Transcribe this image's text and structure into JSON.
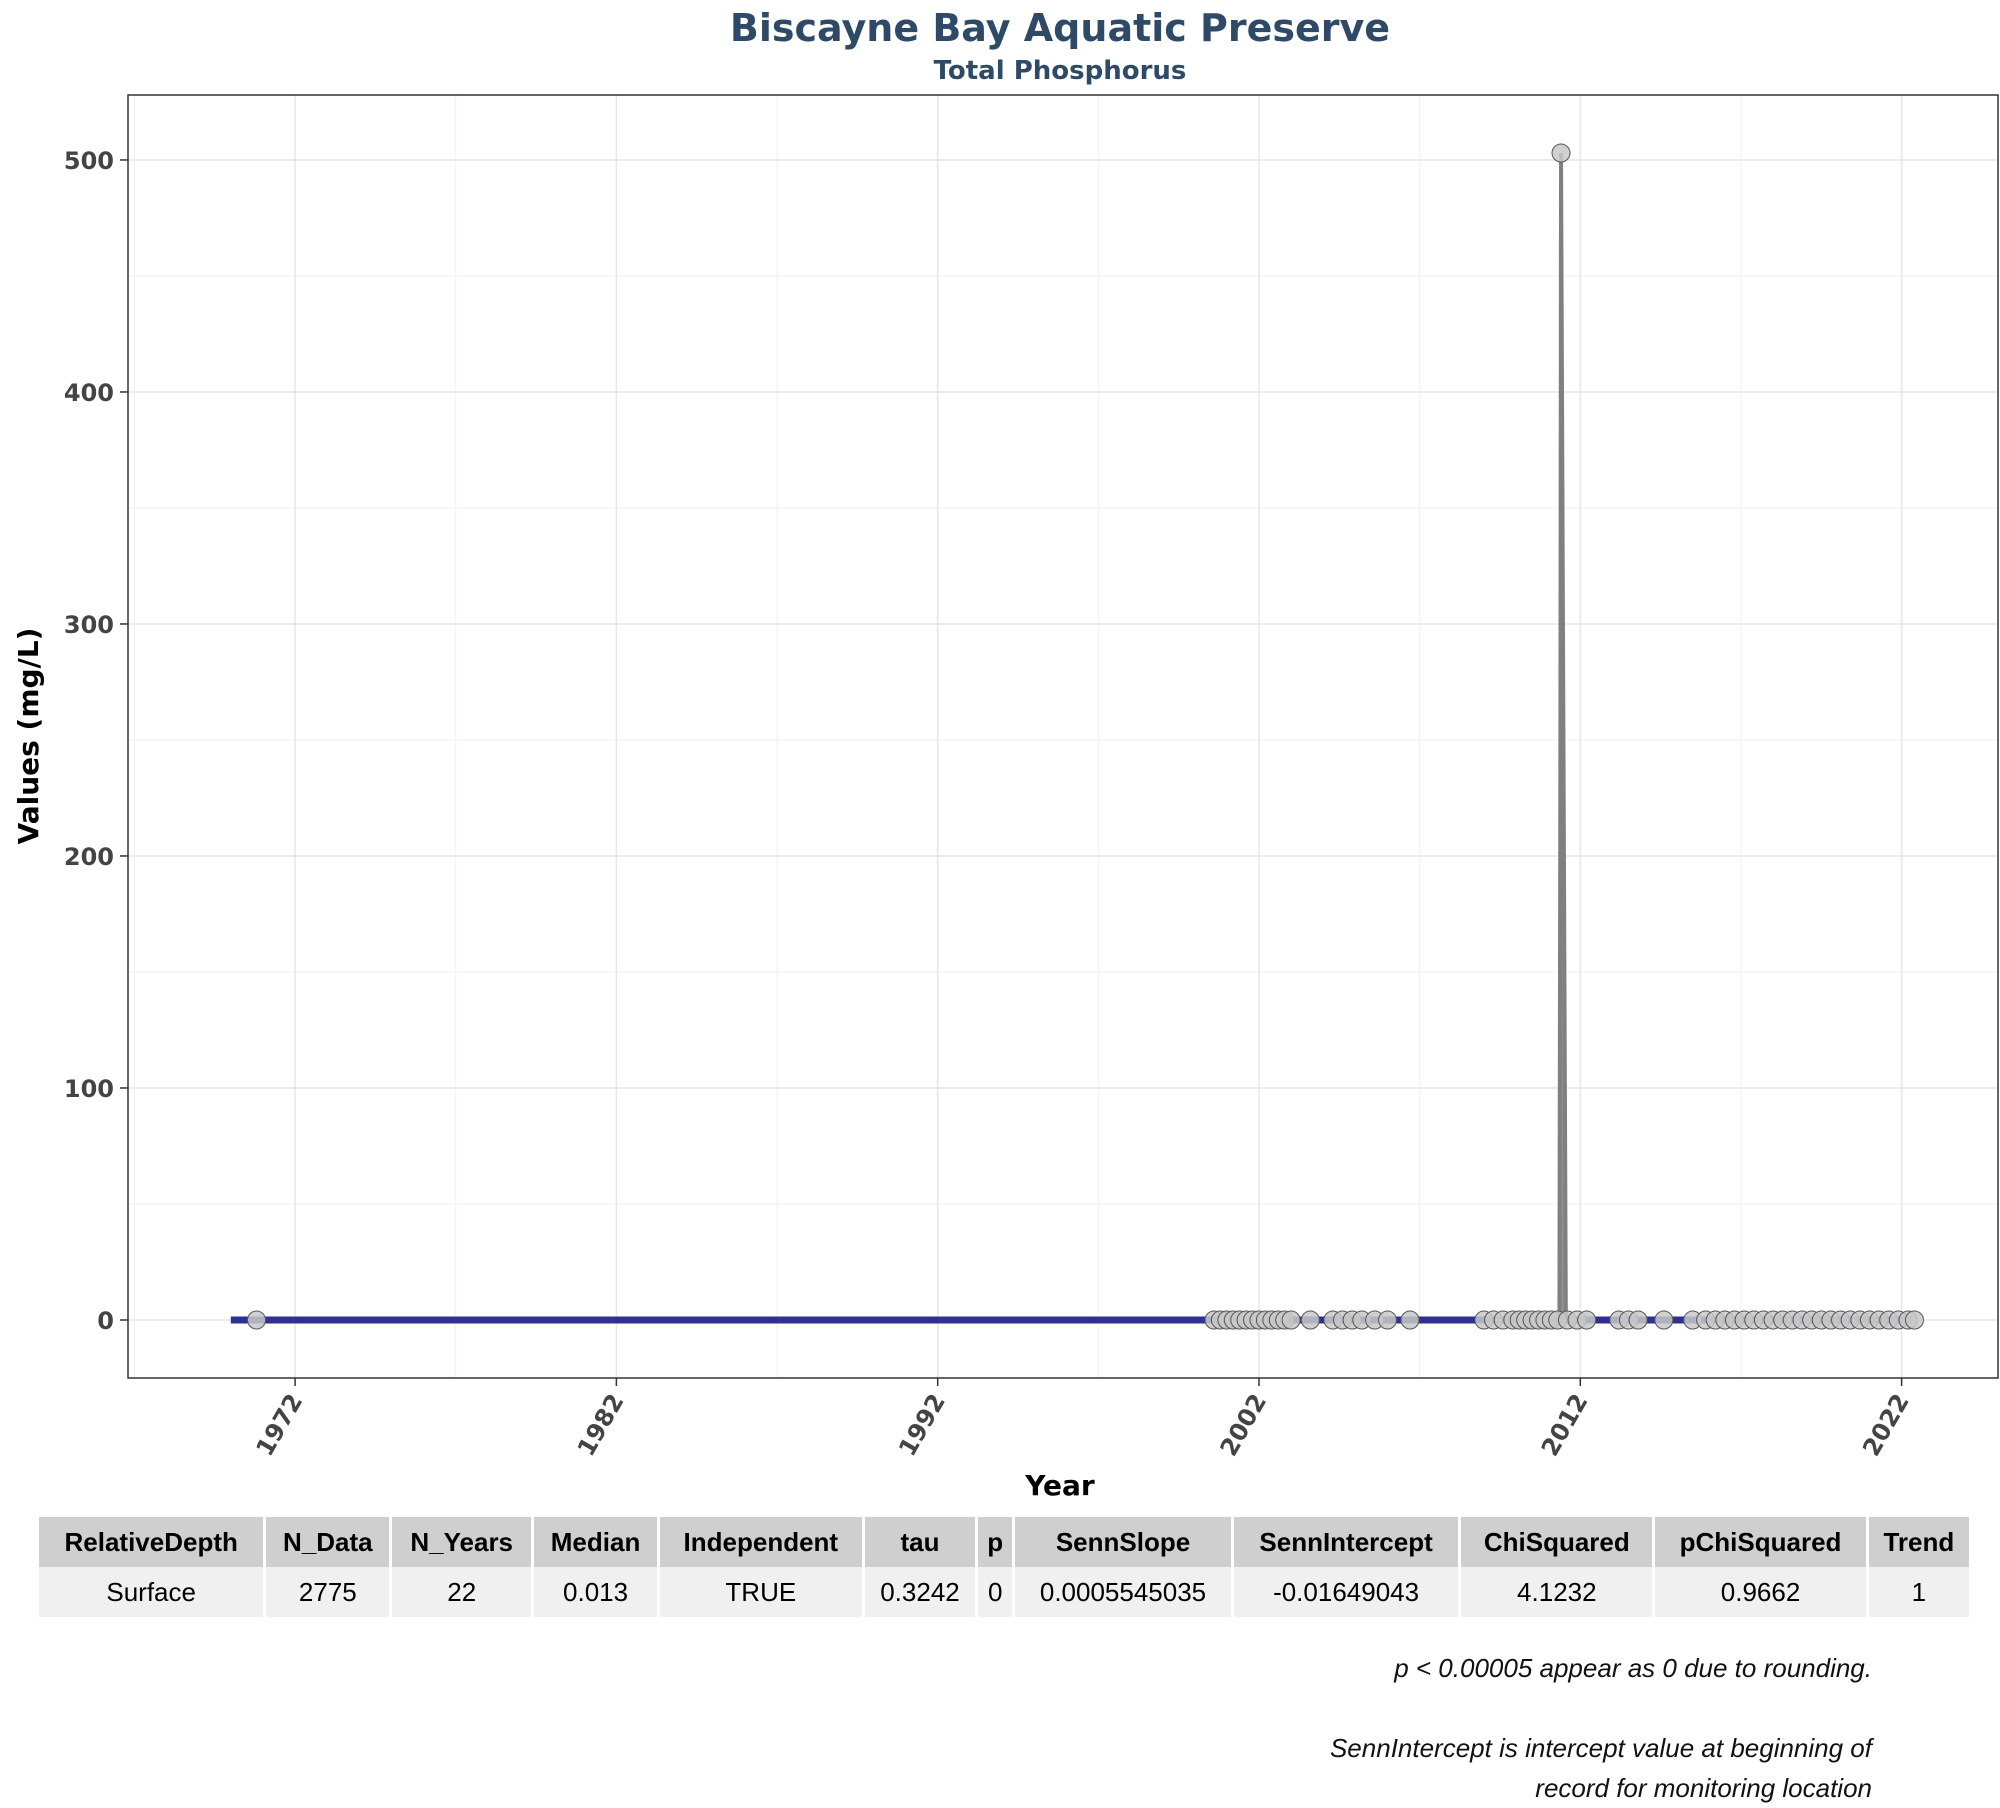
{
  "chart_data": {
    "type": "scatter",
    "title": "Biscayne Bay Aquatic Preserve",
    "subtitle": "Total Phosphorus",
    "xlabel": "Year",
    "ylabel": "Values (mg/L)",
    "xlim": [
      1966.8,
      2025.0
    ],
    "ylim": [
      -25,
      528
    ],
    "x_ticks": [
      1972,
      1982,
      1992,
      2002,
      2012,
      2022
    ],
    "y_ticks": [
      0,
      100,
      200,
      300,
      400,
      500
    ],
    "grid": true,
    "point_color": "#c8c8c8",
    "line_color": "#808080",
    "trend_color": "#2e3192",
    "points": [
      {
        "x": 1970.8,
        "y": 0
      },
      {
        "x": 2000.6,
        "y": 0
      },
      {
        "x": 2000.8,
        "y": 0
      },
      {
        "x": 2001.0,
        "y": 0
      },
      {
        "x": 2001.2,
        "y": 0
      },
      {
        "x": 2001.4,
        "y": 0
      },
      {
        "x": 2001.6,
        "y": 0
      },
      {
        "x": 2001.8,
        "y": 0
      },
      {
        "x": 2002.0,
        "y": 0
      },
      {
        "x": 2002.2,
        "y": 0
      },
      {
        "x": 2002.4,
        "y": 0
      },
      {
        "x": 2002.6,
        "y": 0
      },
      {
        "x": 2002.8,
        "y": 0
      },
      {
        "x": 2003.0,
        "y": 0
      },
      {
        "x": 2003.6,
        "y": 0
      },
      {
        "x": 2004.3,
        "y": 0
      },
      {
        "x": 2004.6,
        "y": 0
      },
      {
        "x": 2004.9,
        "y": 0
      },
      {
        "x": 2005.2,
        "y": 0
      },
      {
        "x": 2005.6,
        "y": 0
      },
      {
        "x": 2006.0,
        "y": 0
      },
      {
        "x": 2006.7,
        "y": 0
      },
      {
        "x": 2009.0,
        "y": 0
      },
      {
        "x": 2009.3,
        "y": 0
      },
      {
        "x": 2009.6,
        "y": 0
      },
      {
        "x": 2009.9,
        "y": 0
      },
      {
        "x": 2010.1,
        "y": 0
      },
      {
        "x": 2010.3,
        "y": 0
      },
      {
        "x": 2010.5,
        "y": 0
      },
      {
        "x": 2010.7,
        "y": 0
      },
      {
        "x": 2010.9,
        "y": 0
      },
      {
        "x": 2011.1,
        "y": 0
      },
      {
        "x": 2011.3,
        "y": 0
      },
      {
        "x": 2011.4,
        "y": 503
      },
      {
        "x": 2011.6,
        "y": 0
      },
      {
        "x": 2011.9,
        "y": 0
      },
      {
        "x": 2012.2,
        "y": 0
      },
      {
        "x": 2013.2,
        "y": 0
      },
      {
        "x": 2013.5,
        "y": 0
      },
      {
        "x": 2013.8,
        "y": 0
      },
      {
        "x": 2014.6,
        "y": 0
      },
      {
        "x": 2015.5,
        "y": 0
      },
      {
        "x": 2015.9,
        "y": 0
      },
      {
        "x": 2016.2,
        "y": 0
      },
      {
        "x": 2016.5,
        "y": 0
      },
      {
        "x": 2016.8,
        "y": 0
      },
      {
        "x": 2017.1,
        "y": 0
      },
      {
        "x": 2017.4,
        "y": 0
      },
      {
        "x": 2017.7,
        "y": 0
      },
      {
        "x": 2018.0,
        "y": 0
      },
      {
        "x": 2018.3,
        "y": 0
      },
      {
        "x": 2018.6,
        "y": 0
      },
      {
        "x": 2018.9,
        "y": 0
      },
      {
        "x": 2019.2,
        "y": 0
      },
      {
        "x": 2019.5,
        "y": 0
      },
      {
        "x": 2019.8,
        "y": 0
      },
      {
        "x": 2020.1,
        "y": 0
      },
      {
        "x": 2020.4,
        "y": 0
      },
      {
        "x": 2020.7,
        "y": 0
      },
      {
        "x": 2021.0,
        "y": 0
      },
      {
        "x": 2021.3,
        "y": 0
      },
      {
        "x": 2021.6,
        "y": 0
      },
      {
        "x": 2021.9,
        "y": 0
      },
      {
        "x": 2022.2,
        "y": 0
      },
      {
        "x": 2022.4,
        "y": 0
      }
    ],
    "spike_line": [
      {
        "x": 2011.35,
        "y": 0
      },
      {
        "x": 2011.38,
        "y": 250
      },
      {
        "x": 2011.4,
        "y": 503
      },
      {
        "x": 2011.45,
        "y": 335
      },
      {
        "x": 2011.5,
        "y": 168
      },
      {
        "x": 2011.55,
        "y": 0
      }
    ],
    "trend_line": {
      "x": [
        1970.0,
        2022.3
      ],
      "y": [
        0,
        0
      ]
    }
  },
  "table": {
    "headers": [
      "RelativeDepth",
      "N_Data",
      "N_Years",
      "Median",
      "Independent",
      "tau",
      "p",
      "SennSlope",
      "SennIntercept",
      "ChiSquared",
      "pChiSquared",
      "Trend"
    ],
    "rows": [
      [
        "Surface",
        "2775",
        "22",
        "0.013",
        "TRUE",
        "0.3242",
        "0",
        "0.0005545035",
        "-0.01649043",
        "4.1232",
        "0.9662",
        "1"
      ]
    ]
  },
  "notes": {
    "rounding": "p < 0.00005 appear as 0 due to rounding.",
    "intercept_line1": "SennIntercept is intercept value at beginning of",
    "intercept_line2": "record for monitoring location"
  }
}
